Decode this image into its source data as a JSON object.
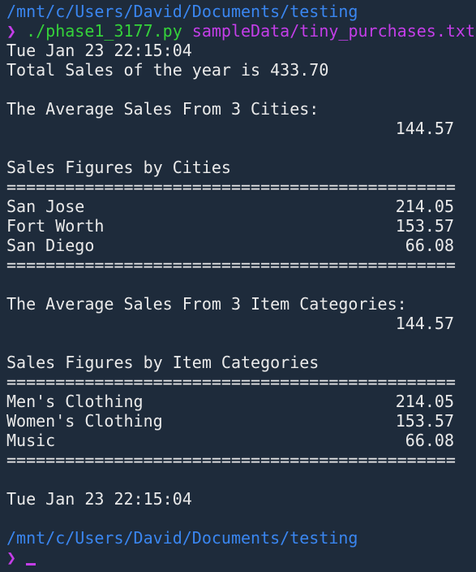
{
  "prompt_1": {
    "path": "/mnt/c/Users/David/Documents/testing",
    "symbol": "❯",
    "script": "./phase1_3177.py",
    "args": "sampleData/tiny_purchases.txt"
  },
  "timestamp_start": "Tue Jan 23 22:15:04",
  "total_line": "Total Sales of the year is 433.70",
  "average_cities": {
    "heading": "The Average Sales From 3 Cities:",
    "value": "144.57"
  },
  "cities": {
    "heading": "Sales Figures by Cities",
    "separator": "==============================================",
    "rows": [
      {
        "name": "San Jose",
        "value": "214.05"
      },
      {
        "name": "Fort Worth",
        "value": "153.57"
      },
      {
        "name": "San Diego",
        "value": "66.08"
      }
    ]
  },
  "average_categories": {
    "heading": "The Average Sales From 3 Item Categories:",
    "value": "144.57"
  },
  "categories": {
    "heading": "Sales Figures by Item Categories",
    "separator": "==============================================",
    "rows": [
      {
        "name": "Men's Clothing",
        "value": "214.05"
      },
      {
        "name": "Women's Clothing",
        "value": "153.57"
      },
      {
        "name": "Music",
        "value": "66.08"
      }
    ]
  },
  "timestamp_end": "Tue Jan 23 22:15:04",
  "prompt_2": {
    "path": "/mnt/c/Users/David/Documents/testing",
    "symbol": "❯"
  }
}
